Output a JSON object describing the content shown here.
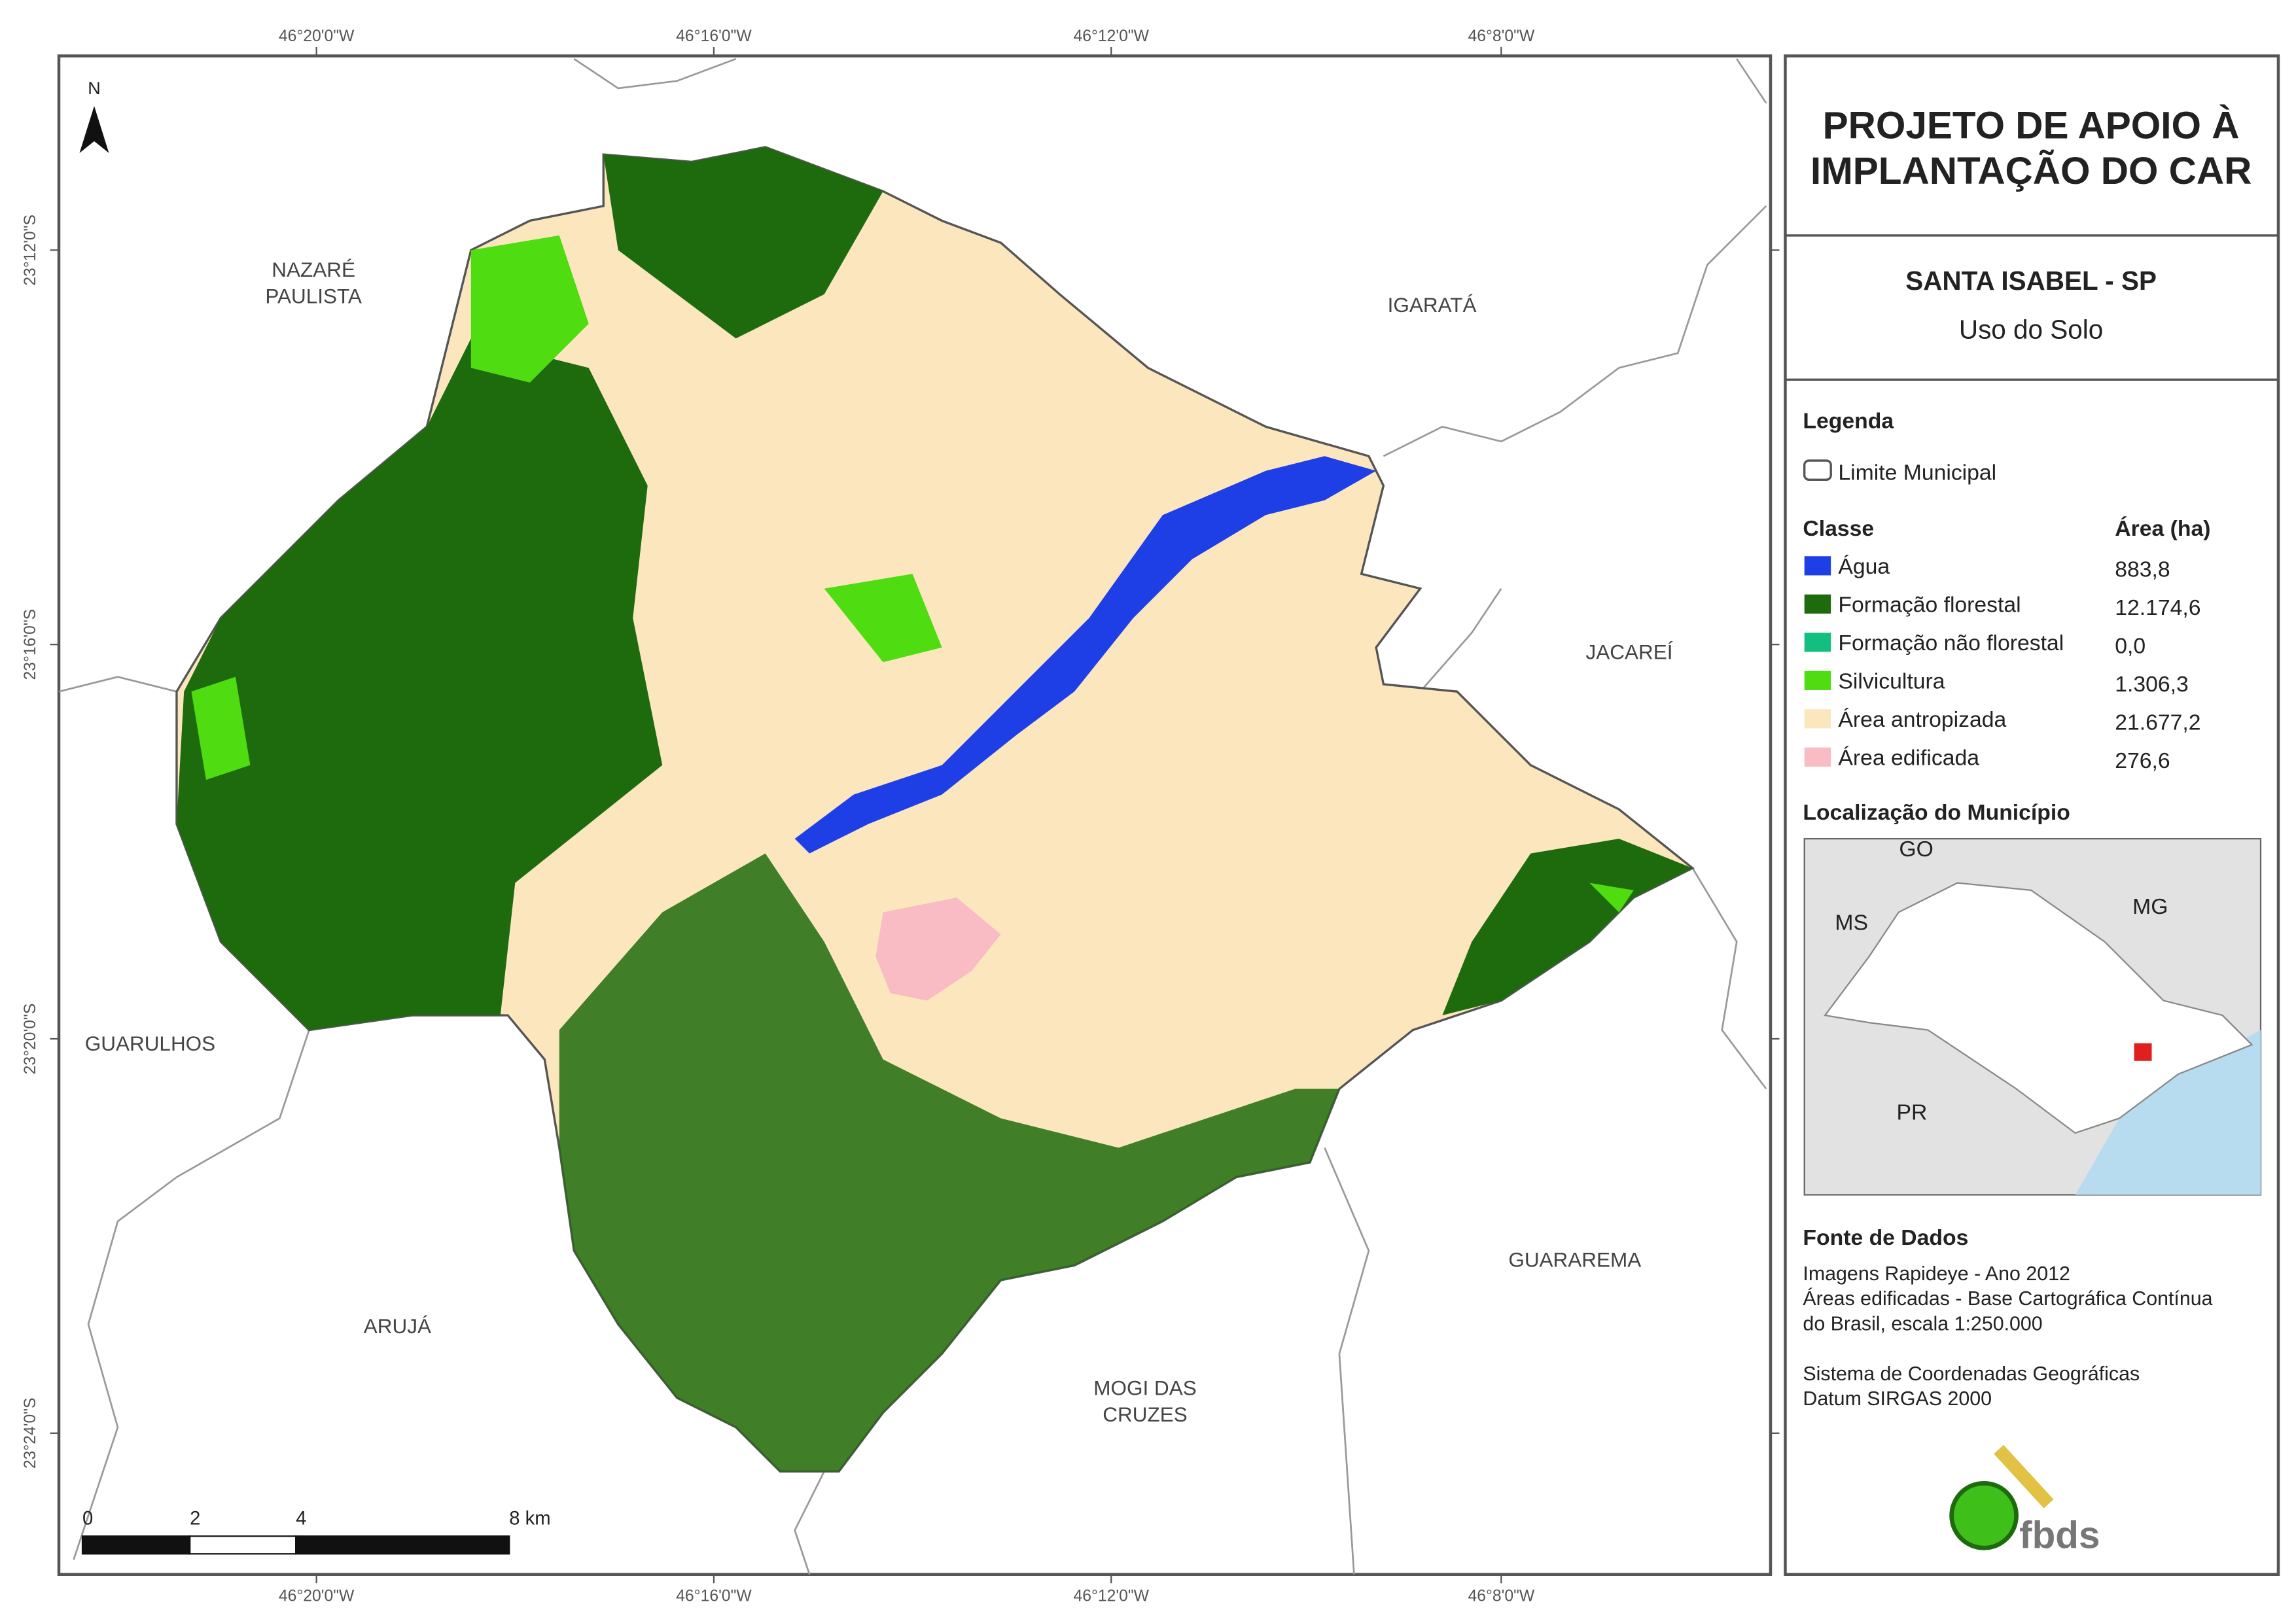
{
  "header": {
    "title": [
      "PROJETO DE APOIO À",
      "IMPLANTAÇÃO DO CAR"
    ],
    "municipality": "SANTA ISABEL - SP",
    "subtitle": "Uso do Solo"
  },
  "legend": {
    "title": "Legenda",
    "boundary": "Limite Municipal",
    "class_header": "Classe",
    "area_header": "Área (ha)",
    "classes": [
      {
        "name": "Água",
        "area": "883,8",
        "color": "#1f3fe6"
      },
      {
        "name": "Formação florestal",
        "area": "12.174,6",
        "color": "#1e6b0e"
      },
      {
        "name": "Formação não florestal",
        "area": "0,0",
        "color": "#13bf7e"
      },
      {
        "name": "Silvicultura",
        "area": "1.306,3",
        "color": "#4fdc10"
      },
      {
        "name": "Área antropizada",
        "area": "21.677,2",
        "color": "#fbe6be"
      },
      {
        "name": "Área edificada",
        "area": "276,6",
        "color": "#f9bcc4"
      }
    ]
  },
  "location": {
    "title": "Localização do Município",
    "labels": [
      "GO",
      "MS",
      "MG",
      "PR"
    ]
  },
  "sources": {
    "title": "Fonte de Dados",
    "lines": [
      "Imagens Rapideye - Ano 2012",
      "Áreas edificadas - Base Cartográfica Contínua",
      "do Brasil, escala 1:250.000",
      "Sistema de Coordenadas Geográficas",
      "Datum SIRGAS 2000"
    ]
  },
  "map": {
    "north": "N",
    "places": [
      [
        "NAZARÉ",
        "PAULISTA"
      ],
      [
        "IGARATÁ"
      ],
      [
        "JACAREÍ"
      ],
      [
        "GUARULHOS"
      ],
      [
        "ARUJÁ"
      ],
      [
        "MOGI DAS",
        "CRUZES"
      ],
      [
        "GUARAREMA"
      ]
    ],
    "longitudes": [
      "46°20'0\"W",
      "46°16'0\"W",
      "46°12'0\"W",
      "46°8'0\"W"
    ],
    "latitudes": [
      "23°12'0\"S",
      "23°16'0\"S",
      "23°20'0\"S",
      "23°24'0\"S"
    ],
    "scale": [
      "0",
      "2",
      "4",
      "8 km"
    ]
  },
  "logo": "fbds"
}
